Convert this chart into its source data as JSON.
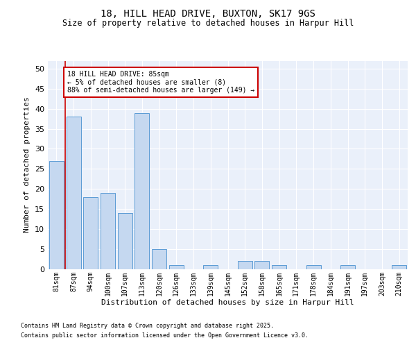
{
  "title1": "18, HILL HEAD DRIVE, BUXTON, SK17 9GS",
  "title2": "Size of property relative to detached houses in Harpur Hill",
  "xlabel": "Distribution of detached houses by size in Harpur Hill",
  "ylabel": "Number of detached properties",
  "categories": [
    "81sqm",
    "87sqm",
    "94sqm",
    "100sqm",
    "107sqm",
    "113sqm",
    "120sqm",
    "126sqm",
    "133sqm",
    "139sqm",
    "145sqm",
    "152sqm",
    "158sqm",
    "165sqm",
    "171sqm",
    "178sqm",
    "184sqm",
    "191sqm",
    "197sqm",
    "203sqm",
    "210sqm"
  ],
  "values": [
    27,
    38,
    18,
    19,
    14,
    39,
    5,
    1,
    0,
    1,
    0,
    2,
    2,
    1,
    0,
    1,
    0,
    1,
    0,
    0,
    1
  ],
  "bar_color": "#c5d8f0",
  "bar_edge_color": "#5b9bd5",
  "vline_color": "#cc0000",
  "annotation_box_color": "#cc0000",
  "annotation_text": "18 HILL HEAD DRIVE: 85sqm\n← 5% of detached houses are smaller (8)\n88% of semi-detached houses are larger (149) →",
  "ylim": [
    0,
    52
  ],
  "yticks": [
    0,
    5,
    10,
    15,
    20,
    25,
    30,
    35,
    40,
    45,
    50
  ],
  "background_color": "#eaf0fa",
  "footer1": "Contains HM Land Registry data © Crown copyright and database right 2025.",
  "footer2": "Contains public sector information licensed under the Open Government Licence v3.0.",
  "bar_width": 0.85
}
